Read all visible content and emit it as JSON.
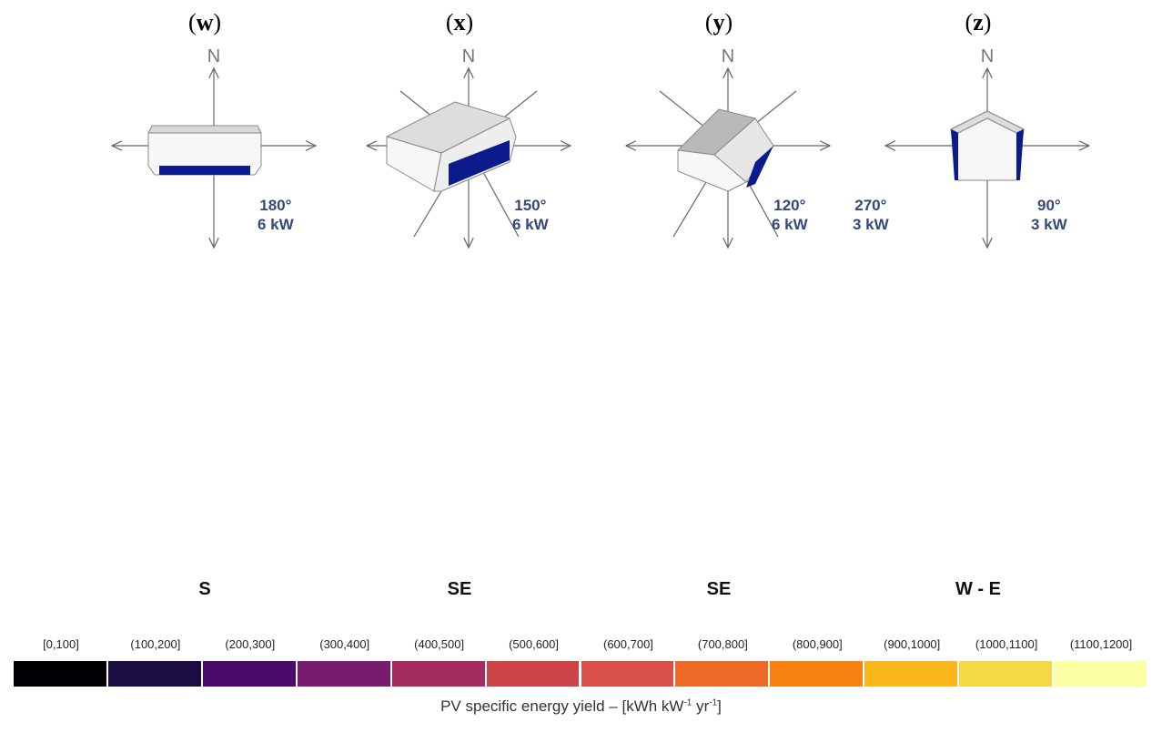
{
  "panels": [
    {
      "label": "w",
      "angles": [
        "180°"
      ],
      "powers": [
        "6 kW"
      ],
      "orientation": "S"
    },
    {
      "label": "x",
      "angles": [
        "150°"
      ],
      "powers": [
        "6 kW"
      ],
      "orientation": "SE"
    },
    {
      "label": "y",
      "angles": [
        "120°"
      ],
      "powers": [
        "6 kW"
      ],
      "orientation": "SE"
    },
    {
      "label": "z",
      "angles": [
        "270°",
        "90°"
      ],
      "powers": [
        "3 kW",
        "3 kW"
      ],
      "orientation": "W - E"
    }
  ],
  "compass_letter": "N",
  "legend": {
    "bins": [
      "[0,100]",
      "(100,200]",
      "(200,300]",
      "(300,400]",
      "(400,500]",
      "(500,600]",
      "(600,700]",
      "(700,800]",
      "(800,900]",
      "(900,1000]",
      "(1000,1100]",
      "(1100,1200]"
    ],
    "colors": [
      "#000004",
      "#1b0c41",
      "#4a0c6b",
      "#781c6d",
      "#a52c60",
      "#cf4446",
      "#d9504a",
      "#ed6925",
      "#f78212",
      "#fbb61a",
      "#f6d746",
      "#fcffa4"
    ],
    "title_main": "PV specific energy yield – [kWh kW",
    "title_sup1": "-1",
    "title_mid": " yr",
    "title_sup2": "-1",
    "title_end": "]"
  },
  "colors": {
    "panel_blue": "#0b1a8c",
    "label_blue": "#34497a",
    "map_base": [
      "#d55a3a",
      "#d3563f",
      "#b9474e",
      "#7b2b66"
    ],
    "map_high": [
      "#e8792a",
      "#e77129",
      "#cc4f45",
      "#9a3460"
    ],
    "sea": "#ffffff",
    "border": "#8a8a8a"
  }
}
